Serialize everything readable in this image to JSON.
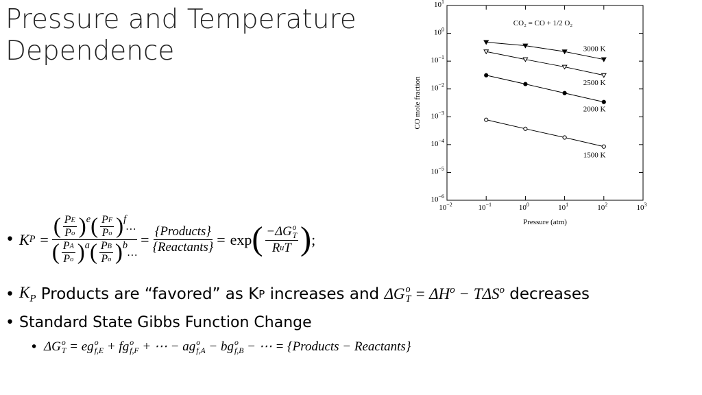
{
  "title": "Pressure and Temperature Dependence",
  "bullets": [
    {
      "tokens": [
        "K",
        "P",
        "=",
        "P",
        "E",
        "P",
        "o",
        "e",
        "P",
        "F",
        "P",
        "o",
        "f",
        "…",
        "P",
        "A",
        "P",
        "o",
        "a",
        "P",
        "B",
        "P",
        "o",
        "b",
        "…",
        "=",
        "{Products}",
        "{Reactants}",
        "=",
        "exp",
        "−ΔG",
        "T",
        "o",
        "R",
        "u",
        "T",
        ";"
      ]
    },
    {
      "tokens": [
        "K",
        "P",
        "Products are “favored” as K",
        "P",
        "increases and",
        "ΔG",
        "o",
        "T",
        "= ΔH",
        "o",
        "− TΔS",
        "o",
        "decreases"
      ]
    },
    {
      "text": "Standard State Gibbs Function Change"
    },
    {
      "tokens": [
        "ΔG",
        "o",
        "T",
        "= eg",
        "o",
        "f,E",
        "+ fg",
        "o",
        "f,F",
        "+ ⋯ − ag",
        "o",
        "f,A",
        "− bg",
        "o",
        "f,B",
        "− ⋯ = {Products − Reactants}"
      ]
    }
  ],
  "chart_data": {
    "type": "line",
    "title": "CO₂ = CO + 1/2 O₂",
    "x_label": "Pressure (atm)",
    "y_label": "CO mole fraction",
    "log_x": true,
    "log_y": true,
    "x": [
      0.1,
      1,
      10,
      100
    ],
    "series": [
      {
        "name": "3000 K",
        "color": "#000000",
        "marker": "triangle-down",
        "filled": true,
        "values": [
          0.48,
          0.36,
          0.22,
          0.115
        ]
      },
      {
        "name": "2500 K",
        "color": "#000000",
        "marker": "triangle-down",
        "filled": false,
        "values": [
          0.22,
          0.115,
          0.062,
          0.031
        ]
      },
      {
        "name": "2000 K",
        "color": "#000000",
        "marker": "circle",
        "filled": true,
        "values": [
          0.031,
          0.015,
          0.0071,
          0.0034
        ]
      },
      {
        "name": "1500 K",
        "color": "#000000",
        "marker": "circle",
        "filled": false,
        "values": [
          0.00078,
          0.00037,
          0.00018,
          8.5e-05
        ]
      }
    ],
    "xlim": [
      0.01,
      1000
    ],
    "xticks": [
      {
        "value": 0.01,
        "label": "10",
        "sup": "−2"
      },
      {
        "value": 0.1,
        "label": "10",
        "sup": "−1"
      },
      {
        "value": 1,
        "label": "10",
        "sup": "0"
      },
      {
        "value": 10,
        "label": "10",
        "sup": "1"
      },
      {
        "value": 100,
        "label": "10",
        "sup": "2"
      },
      {
        "value": 1000,
        "label": "10",
        "sup": "3"
      }
    ],
    "ylim": [
      1e-06,
      10
    ],
    "yticks": [
      {
        "value": 1e-06,
        "label": "10",
        "sup": "−6"
      },
      {
        "value": 1e-05,
        "label": "10",
        "sup": "−5"
      },
      {
        "value": 0.0001,
        "label": "10",
        "sup": "−4"
      },
      {
        "value": 0.001,
        "label": "10",
        "sup": "−3"
      },
      {
        "value": 0.01,
        "label": "10",
        "sup": "−2"
      },
      {
        "value": 0.1,
        "label": "10",
        "sup": "−1"
      },
      {
        "value": 1,
        "label": "10",
        "sup": "0"
      },
      {
        "value": 10,
        "label": "10",
        "sup": "1"
      }
    ]
  }
}
